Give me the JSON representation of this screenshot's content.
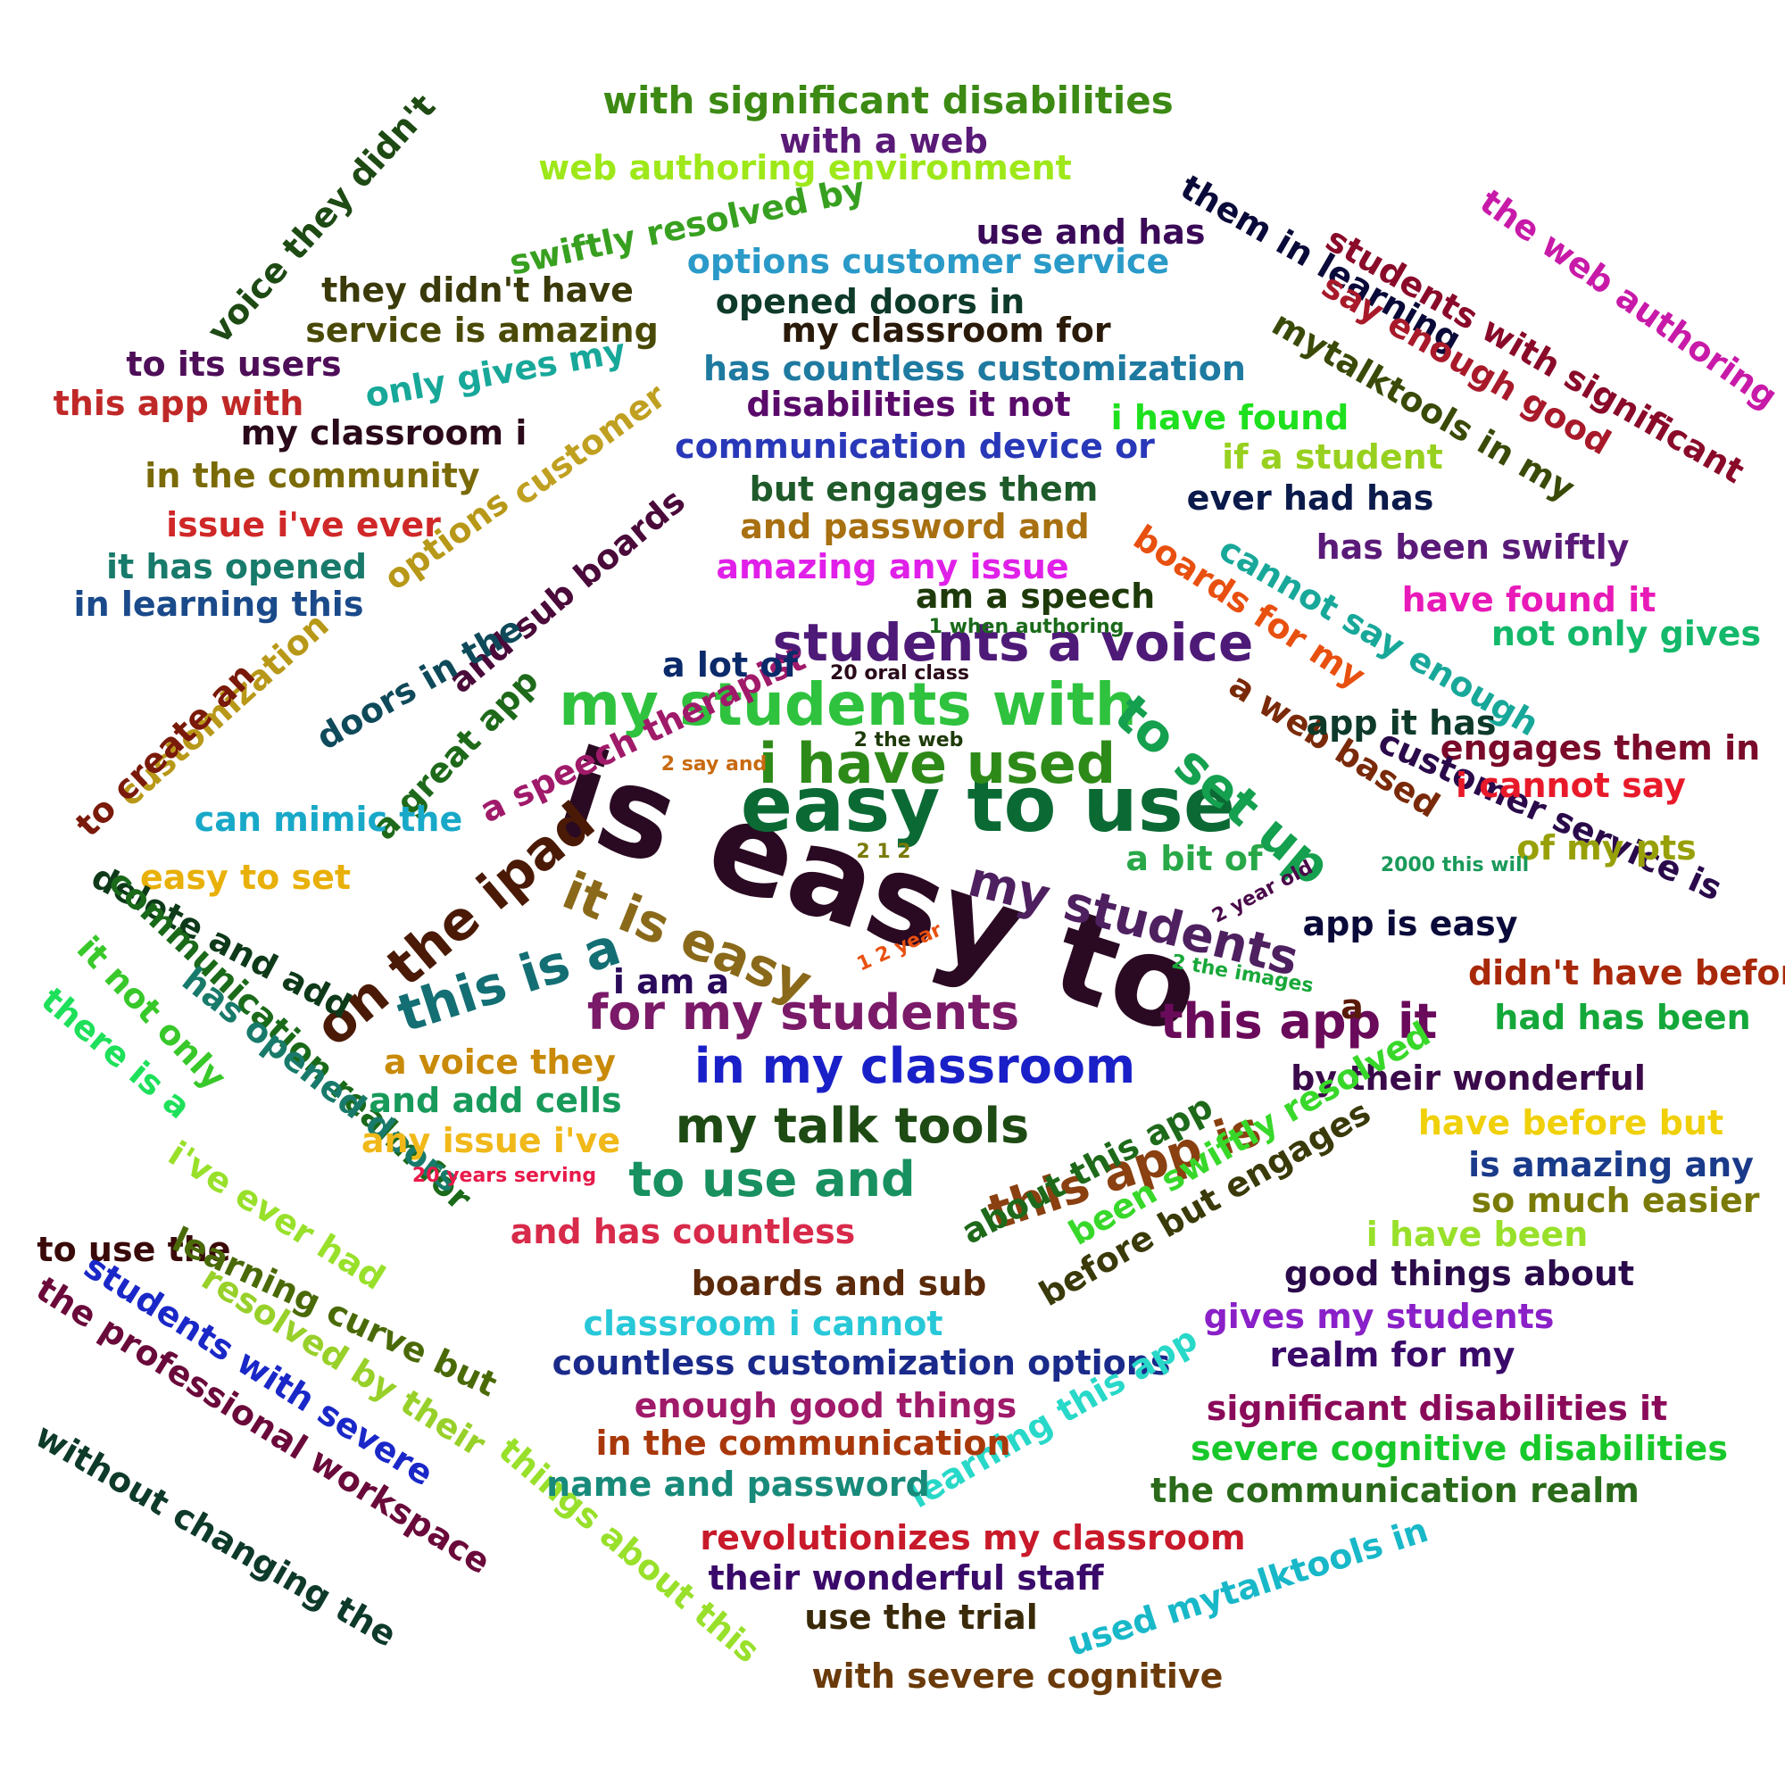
{
  "phrases": [
    {
      "text": "is easy to",
      "color": "#2a0a22"
    },
    {
      "text": "easy to use",
      "color": "#0b6a34"
    },
    {
      "text": "my students with",
      "color": "#2fc23e"
    },
    {
      "text": "i have used",
      "color": "#2e8a18"
    },
    {
      "text": "students a voice",
      "color": "#4e1a78"
    },
    {
      "text": "to set up",
      "color": "#14a04e"
    },
    {
      "text": "on the ipad",
      "color": "#4a1a06"
    },
    {
      "text": "it is easy",
      "color": "#8a6a1a"
    },
    {
      "text": "this is a",
      "color": "#136f73"
    },
    {
      "text": "my students",
      "color": "#4e2060"
    },
    {
      "text": "for my students",
      "color": "#7a1a68"
    },
    {
      "text": "this app it",
      "color": "#6a0a5a"
    },
    {
      "text": "in my classroom",
      "color": "#1a20c8"
    },
    {
      "text": "my talk tools",
      "color": "#1e4a14"
    },
    {
      "text": "this app is",
      "color": "#8a4010"
    },
    {
      "text": "to use and",
      "color": "#189060"
    },
    {
      "text": "with significant disabilities",
      "color": "#3c8a14"
    },
    {
      "text": "with a web",
      "color": "#5a1a78"
    },
    {
      "text": "web authoring environment",
      "color": "#9ee81a"
    },
    {
      "text": "voice they didn't",
      "color": "#1e4a14"
    },
    {
      "text": "swiftly resolved by",
      "color": "#38a020"
    },
    {
      "text": "use and has",
      "color": "#3a0a58"
    },
    {
      "text": "options customer service",
      "color": "#2a9ac8"
    },
    {
      "text": "they didn't have",
      "color": "#3a3a0a"
    },
    {
      "text": "opened doors in",
      "color": "#0e3a2a"
    },
    {
      "text": "service is amazing",
      "color": "#4a4a08"
    },
    {
      "text": "my classroom for",
      "color": "#2a1a0a"
    },
    {
      "text": "to its users",
      "color": "#4e0e58"
    },
    {
      "text": "only gives my",
      "color": "#18a89a"
    },
    {
      "text": "has countless customization",
      "color": "#1e7aa0"
    },
    {
      "text": "this app with",
      "color": "#c02828"
    },
    {
      "text": "customer",
      "color": "#c0a020"
    },
    {
      "text": "disabilities it not",
      "color": "#5a0a6a"
    },
    {
      "text": "i have found",
      "color": "#1ee01e"
    },
    {
      "text": "my classroom i",
      "color": "#2a0a1a"
    },
    {
      "text": "communication device or",
      "color": "#2838b8"
    },
    {
      "text": "if a student",
      "color": "#98d020"
    },
    {
      "text": "in the community",
      "color": "#7a6a08"
    },
    {
      "text": "but engages them",
      "color": "#1e5a2a"
    },
    {
      "text": "options",
      "color": "#b89818"
    },
    {
      "text": "ever had has",
      "color": "#0a1a4a"
    },
    {
      "text": "issue i've ever",
      "color": "#d02828"
    },
    {
      "text": "and password and",
      "color": "#a87010"
    },
    {
      "text": "and sub boards",
      "color": "#4a0a3a"
    },
    {
      "text": "boards for my",
      "color": "#e85010"
    },
    {
      "text": "it has opened",
      "color": "#187a6a"
    },
    {
      "text": "amazing any issue",
      "color": "#e020e8"
    },
    {
      "text": "cannot say enough",
      "color": "#18a89a"
    },
    {
      "text": "has been swiftly",
      "color": "#5a1a78"
    },
    {
      "text": "in learning this",
      "color": "#1a4a8a"
    },
    {
      "text": "am a speech",
      "color": "#1e3a0a"
    },
    {
      "text": "have found it",
      "color": "#e81ab8"
    },
    {
      "text": "1 when authoring",
      "color": "#1a6a1a"
    },
    {
      "text": "doors in the",
      "color": "#0e4a5a"
    },
    {
      "text": "not only gives",
      "color": "#14b86a"
    },
    {
      "text": "customization",
      "color": "#b89818"
    },
    {
      "text": "a speech therapist",
      "color": "#a01a6a"
    },
    {
      "text": "20 oral class",
      "color": "#2a0a1a"
    },
    {
      "text": "a lot of",
      "color": "#0a2a6a"
    },
    {
      "text": "to create an",
      "color": "#7a1a0a"
    },
    {
      "text": "a web based",
      "color": "#7a2a0a"
    },
    {
      "text": "app it has",
      "color": "#0e3a2a"
    },
    {
      "text": "2 the web",
      "color": "#1e3a0a"
    },
    {
      "text": "engages them in",
      "color": "#7a0a2a"
    },
    {
      "text": "a great app",
      "color": "#1e6a1a"
    },
    {
      "text": "2 say and",
      "color": "#c86a10"
    },
    {
      "text": "customer service is",
      "color": "#2a0a4a"
    },
    {
      "text": "i cannot say",
      "color": "#e81a2a"
    },
    {
      "text": "can mimic the",
      "color": "#18a8c8"
    },
    {
      "text": "of my pts",
      "color": "#98a008"
    },
    {
      "text": "2 1 2",
      "color": "#7a7a08"
    },
    {
      "text": "a bit of",
      "color": "#28a848"
    },
    {
      "text": "2000 this will",
      "color": "#1a9a5a"
    },
    {
      "text": "easy to set",
      "color": "#e8b008"
    },
    {
      "text": "2 year old",
      "color": "#4a0a4a"
    },
    {
      "text": "app is easy",
      "color": "#0a0a3a"
    },
    {
      "text": "delete and add",
      "color": "#0e3a1a"
    },
    {
      "text": "1 2 year",
      "color": "#e85010"
    },
    {
      "text": "2 the images",
      "color": "#18a83a"
    },
    {
      "text": "i am a",
      "color": "#2a0a5a"
    },
    {
      "text": "a",
      "color": "#5a1a0a"
    },
    {
      "text": "didn't have before",
      "color": "#a8280a"
    },
    {
      "text": "communication realm for",
      "color": "#1a6a1a"
    },
    {
      "text": "had has been",
      "color": "#14a83a"
    },
    {
      "text": "it not only",
      "color": "#38c82a"
    },
    {
      "text": "has opened doors",
      "color": "#187a6a"
    },
    {
      "text": "there is a",
      "color": "#1ee05a"
    },
    {
      "text": "a voice they",
      "color": "#c88a08"
    },
    {
      "text": "by their wonderful",
      "color": "#3a0a4a"
    },
    {
      "text": "and add cells",
      "color": "#189a5a"
    },
    {
      "text": "have before but",
      "color": "#f0d008"
    },
    {
      "text": "any issue i've",
      "color": "#f0b818"
    },
    {
      "text": "been swiftly resolved",
      "color": "#38d82a"
    },
    {
      "text": "is amazing any",
      "color": "#1a3a8a"
    },
    {
      "text": "20 years serving",
      "color": "#e81a4a"
    },
    {
      "text": "about this app",
      "color": "#1e6a1a"
    },
    {
      "text": "so much easier",
      "color": "#7a7a08"
    },
    {
      "text": "and has countless",
      "color": "#d82a4a"
    },
    {
      "text": "i've ever had",
      "color": "#98e02a"
    },
    {
      "text": "before but engages",
      "color": "#3a3a0a"
    },
    {
      "text": "i have been",
      "color": "#98e02a"
    },
    {
      "text": "to use the",
      "color": "#3a0a0a"
    },
    {
      "text": "good things about",
      "color": "#2a0a4a"
    },
    {
      "text": "boards and sub",
      "color": "#5a2a0a"
    },
    {
      "text": "learning curve but",
      "color": "#4a6a08"
    },
    {
      "text": "gives my students",
      "color": "#8a20c8"
    },
    {
      "text": "classroom i cannot",
      "color": "#28c8d8"
    },
    {
      "text": "resolved by their",
      "color": "#98d02a"
    },
    {
      "text": "realm for my",
      "color": "#3a0a6a"
    },
    {
      "text": "students with severe",
      "color": "#1a28c8"
    },
    {
      "text": "countless customization options",
      "color": "#1a2a8a"
    },
    {
      "text": "learning this app",
      "color": "#28d8c8"
    },
    {
      "text": "significant disabilities it",
      "color": "#8a0a5a"
    },
    {
      "text": "the professional workspace",
      "color": "#6a0a3a"
    },
    {
      "text": "enough good things",
      "color": "#a01a6a"
    },
    {
      "text": "in the communication",
      "color": "#a8380a"
    },
    {
      "text": "severe cognitive disabilities",
      "color": "#18c82a"
    },
    {
      "text": "things about this",
      "color": "#98e02a"
    },
    {
      "text": "name and password",
      "color": "#188a7a"
    },
    {
      "text": "the communication realm",
      "color": "#2a6a1a"
    },
    {
      "text": "without changing the",
      "color": "#0e3a2a"
    },
    {
      "text": "used mytalktools in",
      "color": "#18b8c8"
    },
    {
      "text": "revolutionizes my classroom",
      "color": "#c81a2a"
    },
    {
      "text": "their wonderful staff",
      "color": "#3a0a6a"
    },
    {
      "text": "use the trial",
      "color": "#3a2a0a"
    },
    {
      "text": "with severe cognitive",
      "color": "#6a3a0a"
    },
    {
      "text": "them in learning",
      "color": "#0a0a3a"
    },
    {
      "text": "students with significant",
      "color": "#8a0a2a"
    },
    {
      "text": "the web authoring",
      "color": "#c81aa8"
    },
    {
      "text": "say enough good",
      "color": "#a81a2a"
    },
    {
      "text": "mytalktools in my",
      "color": "#3a4a08"
    }
  ]
}
